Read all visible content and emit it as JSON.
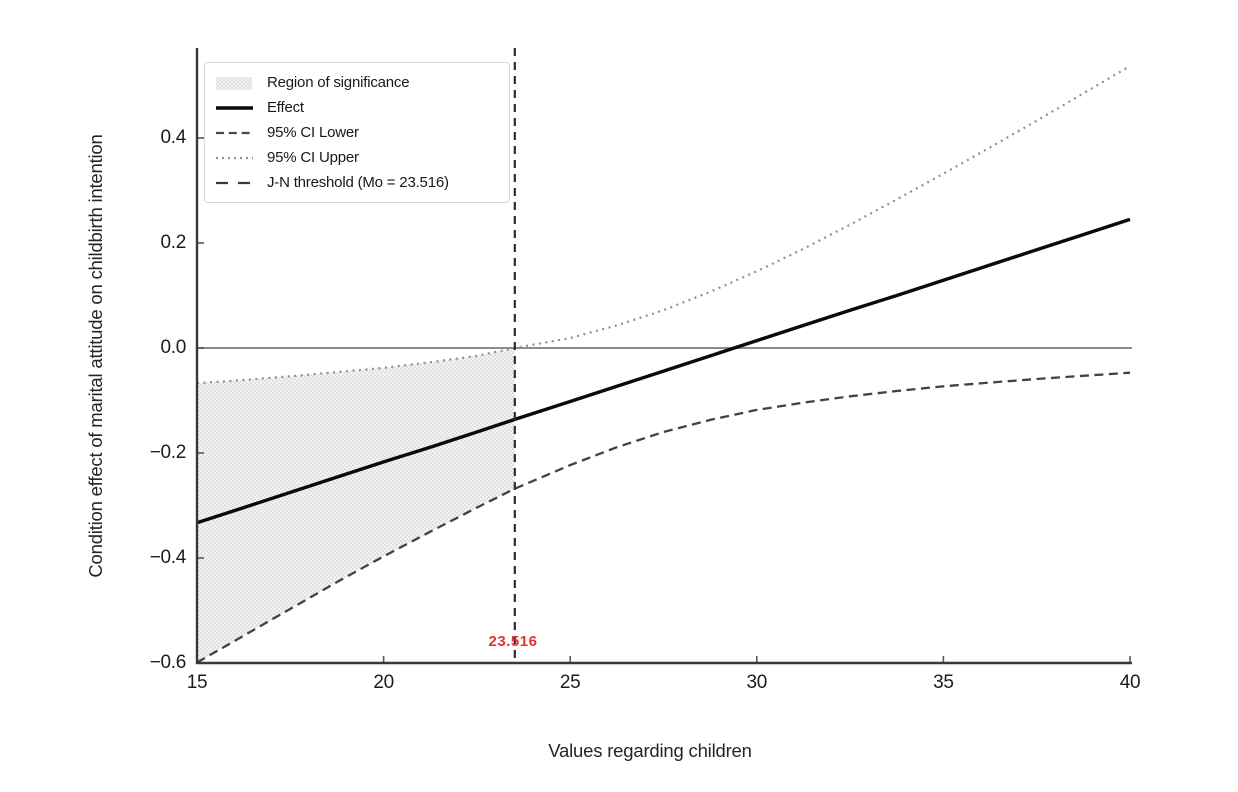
{
  "chart_data": {
    "type": "line",
    "title": "",
    "xlabel": "Values regarding children",
    "ylabel": "Condition effect of marital attitude on childbirth intention",
    "xlim": [
      15,
      40
    ],
    "ylim": [
      -0.6,
      0.5714
    ],
    "grid": false,
    "legend_position": "upper-left",
    "x_ticks": [
      15,
      20,
      25,
      30,
      35,
      40
    ],
    "x_tick_labels": [
      "15",
      "20",
      "25",
      "30",
      "35",
      "40"
    ],
    "y_ticks": [
      0.4,
      0.2,
      0.0,
      -0.2,
      -0.4,
      -0.6
    ],
    "y_tick_labels": [
      "0.4",
      "0.2",
      "0.0",
      "−0.2",
      "−0.4",
      "−0.6"
    ],
    "zero_line_y": 0.0,
    "jn_threshold": {
      "x": 23.516,
      "label": "23.516",
      "label_color": "#e0352e"
    },
    "region_of_significance": {
      "x_start": 15,
      "x_end": 23.516,
      "bounded_by": [
        "95% CI Upper",
        "95% CI Lower"
      ]
    },
    "x": [
      15,
      16.25,
      17.5,
      18.75,
      20,
      21.25,
      22.5,
      23.516,
      25,
      26.25,
      27.5,
      28.75,
      30,
      31.25,
      32.5,
      33.75,
      35,
      36.25,
      37.5,
      38.75,
      40
    ],
    "series": [
      {
        "name": "Effect",
        "style": "solid",
        "color": "#0a0a0a",
        "values": [
          -0.333,
          -0.304,
          -0.275,
          -0.246,
          -0.217,
          -0.189,
          -0.16,
          -0.136,
          -0.102,
          -0.073,
          -0.044,
          -0.015,
          0.014,
          0.043,
          0.072,
          0.1,
          0.129,
          0.158,
          0.187,
          0.216,
          0.245
        ]
      },
      {
        "name": "95% CI Lower",
        "style": "dashed",
        "color": "#424242",
        "values": [
          -0.599,
          -0.548,
          -0.497,
          -0.446,
          -0.397,
          -0.35,
          -0.304,
          -0.268,
          -0.223,
          -0.189,
          -0.16,
          -0.137,
          -0.118,
          -0.104,
          -0.092,
          -0.082,
          -0.073,
          -0.066,
          -0.059,
          -0.053,
          -0.047
        ]
      },
      {
        "name": "95% CI Upper",
        "style": "dotted",
        "color": "#8f8f8f",
        "values": [
          -0.067,
          -0.061,
          -0.054,
          -0.046,
          -0.038,
          -0.027,
          -0.015,
          0.0,
          0.019,
          0.043,
          0.072,
          0.107,
          0.146,
          0.189,
          0.235,
          0.283,
          0.332,
          0.382,
          0.433,
          0.485,
          0.537
        ]
      }
    ],
    "legend": [
      {
        "label": "Region of significance",
        "swatch": "region-patch"
      },
      {
        "label": "Effect",
        "swatch": "solid-line"
      },
      {
        "label": "95% CI Lower",
        "swatch": "dashed-line"
      },
      {
        "label": "95% CI Upper",
        "swatch": "dotted-line"
      },
      {
        "label": "J-N threshold (Mo = 23.516)",
        "swatch": "long-dash-line"
      }
    ]
  }
}
